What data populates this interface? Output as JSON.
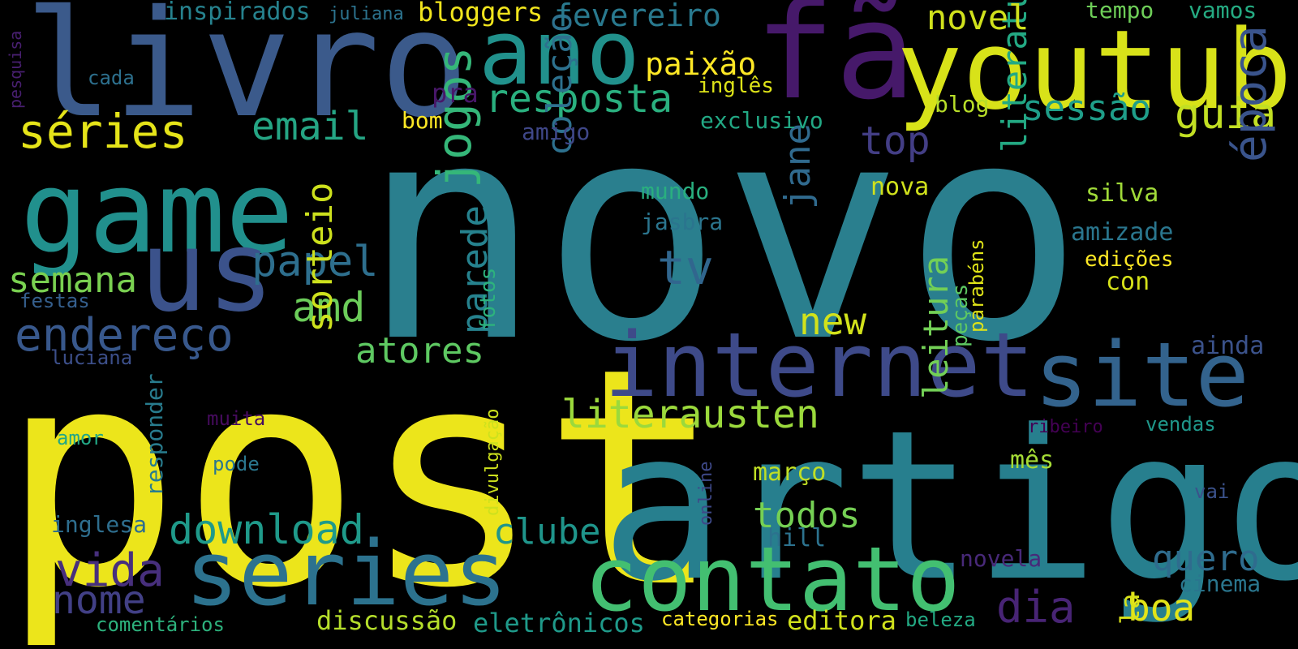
{
  "cloud": {
    "words": [
      {
        "id": "novo",
        "text": "novo",
        "color": "#2a7f8e"
      },
      {
        "id": "post",
        "text": "post",
        "color": "#ece51b"
      },
      {
        "id": "artigo",
        "text": "artigo",
        "color": "#277f8e"
      },
      {
        "id": "livro",
        "text": "livro",
        "color": "#3b5a8b"
      },
      {
        "id": "fa",
        "text": "fã",
        "color": "#46196a"
      },
      {
        "id": "youtube",
        "text": "youtube",
        "color": "#d8e219"
      },
      {
        "id": "game",
        "text": "game",
        "color": "#21908d"
      },
      {
        "id": "us",
        "text": "us",
        "color": "#3b528b"
      },
      {
        "id": "ano",
        "text": "ano",
        "color": "#21918c"
      },
      {
        "id": "internet",
        "text": "internet",
        "color": "#3e4a89"
      },
      {
        "id": "site",
        "text": "site",
        "color": "#33638d"
      },
      {
        "id": "series-2",
        "text": "series",
        "color": "#2c728e"
      },
      {
        "id": "contato",
        "text": "contato",
        "color": "#43bf71"
      },
      {
        "id": "series",
        "text": "séries",
        "color": "#e5e419"
      },
      {
        "id": "email",
        "text": "email",
        "color": "#25a584"
      },
      {
        "id": "endereco",
        "text": "endereço",
        "color": "#38588c"
      },
      {
        "id": "semana",
        "text": "semana",
        "color": "#7ad151"
      },
      {
        "id": "papel",
        "text": "papel",
        "color": "#2e6f8e"
      },
      {
        "id": "amd",
        "text": "amd",
        "color": "#6ccd5a"
      },
      {
        "id": "jogos",
        "text": "jogos",
        "color": "#35b779"
      },
      {
        "id": "resposta",
        "text": "resposta",
        "color": "#2ab07f"
      },
      {
        "id": "paixao",
        "text": "paixão",
        "color": "#fde725"
      },
      {
        "id": "tv",
        "text": "tv",
        "color": "#31668e"
      },
      {
        "id": "top",
        "text": "top",
        "color": "#433e85"
      },
      {
        "id": "colecao",
        "text": "coleção",
        "color": "#2d718e"
      },
      {
        "id": "sessao",
        "text": "sessão",
        "color": "#1f9e89"
      },
      {
        "id": "guia",
        "text": "guia",
        "color": "#c2df23"
      },
      {
        "id": "epoca",
        "text": "época",
        "color": "#3a548c"
      },
      {
        "id": "literatura",
        "text": "literatura",
        "color": "#23a983"
      },
      {
        "id": "jane",
        "text": "jane",
        "color": "#306a8e"
      },
      {
        "id": "new",
        "text": "new",
        "color": "#d2e21b"
      },
      {
        "id": "atores",
        "text": "atores",
        "color": "#5ec962"
      },
      {
        "id": "sorteio",
        "text": "sorteio",
        "color": "#cde11d"
      },
      {
        "id": "literausten",
        "text": "literausten",
        "color": "#9bd93c"
      },
      {
        "id": "parede",
        "text": "parede",
        "color": "#26828e"
      },
      {
        "id": "leitura",
        "text": "leitura",
        "color": "#73d056"
      },
      {
        "id": "download",
        "text": "download",
        "color": "#1f9a8a"
      },
      {
        "id": "vida",
        "text": "vida",
        "color": "#472f7d"
      },
      {
        "id": "nome",
        "text": "nome",
        "color": "#424086"
      },
      {
        "id": "clube",
        "text": "clube",
        "color": "#1f958b"
      },
      {
        "id": "todos",
        "text": "todos",
        "color": "#75d054"
      },
      {
        "id": "dia",
        "text": "dia",
        "color": "#482475"
      },
      {
        "id": "boa",
        "text": "boa",
        "color": "#e2e418"
      },
      {
        "id": "quero",
        "text": "quero",
        "color": "#2f6c8e"
      },
      {
        "id": "fevereiro",
        "text": "fevereiro",
        "color": "#29798e"
      },
      {
        "id": "bloggers",
        "text": "bloggers",
        "color": "#f1e51d"
      },
      {
        "id": "inspirados",
        "text": "inspirados",
        "color": "#26828e"
      },
      {
        "id": "juliana",
        "text": "juliana",
        "color": "#2c738e"
      },
      {
        "id": "novel",
        "text": "novel",
        "color": "#d0e11c"
      },
      {
        "id": "tempo",
        "text": "tempo",
        "color": "#6ece58"
      },
      {
        "id": "vamos",
        "text": "vamos",
        "color": "#25ab82"
      },
      {
        "id": "cada",
        "text": "cada",
        "color": "#2d708e"
      },
      {
        "id": "pesquisa",
        "text": "pesquisa",
        "color": "#481f70"
      },
      {
        "id": "pra",
        "text": "pra",
        "color": "#481769"
      },
      {
        "id": "ingles",
        "text": "inglês",
        "color": "#dde318"
      },
      {
        "id": "blog",
        "text": "blog",
        "color": "#b8de29"
      },
      {
        "id": "bom",
        "text": "bom",
        "color": "#fde725"
      },
      {
        "id": "amigo",
        "text": "amigo",
        "color": "#3f4788"
      },
      {
        "id": "exclusivo",
        "text": "exclusivo",
        "color": "#22a884"
      },
      {
        "id": "mundo",
        "text": "mundo",
        "color": "#29af7f"
      },
      {
        "id": "nova",
        "text": "nova",
        "color": "#d0e11c"
      },
      {
        "id": "silva",
        "text": "silva",
        "color": "#a0da39"
      },
      {
        "id": "jasbra",
        "text": "jasbra",
        "color": "#2b758e"
      },
      {
        "id": "amizade",
        "text": "amizade",
        "color": "#2a768e"
      },
      {
        "id": "edicoes",
        "text": "edições",
        "color": "#fde725"
      },
      {
        "id": "con",
        "text": "con",
        "color": "#d5e21a"
      },
      {
        "id": "fotos",
        "text": "fotos",
        "color": "#2db27d"
      },
      {
        "id": "pecas",
        "text": "peças",
        "color": "#5ec962"
      },
      {
        "id": "parabens",
        "text": "parabéns",
        "color": "#dfe318"
      },
      {
        "id": "festas",
        "text": "festas",
        "color": "#355f8d"
      },
      {
        "id": "luciana",
        "text": "luciana",
        "color": "#3c4f8a"
      },
      {
        "id": "ainda",
        "text": "ainda",
        "color": "#3b528b"
      },
      {
        "id": "responder",
        "text": "responder",
        "color": "#287c8e"
      },
      {
        "id": "muita",
        "text": "muita",
        "color": "#460b5e"
      },
      {
        "id": "amor",
        "text": "amor",
        "color": "#22a785"
      },
      {
        "id": "pode",
        "text": "pode",
        "color": "#2a778e"
      },
      {
        "id": "divulgacao",
        "text": "divulgação",
        "color": "#cde11d"
      },
      {
        "id": "online",
        "text": "online",
        "color": "#3e4989"
      },
      {
        "id": "marco",
        "text": "março",
        "color": "#c0df25"
      },
      {
        "id": "mes",
        "text": "mês",
        "color": "#a5db36"
      },
      {
        "id": "ribeiro",
        "text": "ribeiro",
        "color": "#440154"
      },
      {
        "id": "vendas",
        "text": "vendas",
        "color": "#1f988b"
      },
      {
        "id": "vai",
        "text": "vai",
        "color": "#3b528b"
      },
      {
        "id": "inglesa",
        "text": "inglesa",
        "color": "#2e6e8e"
      },
      {
        "id": "hill",
        "text": "hill",
        "color": "#2c728e"
      },
      {
        "id": "novela",
        "text": "novela",
        "color": "#482979"
      },
      {
        "id": "cinema",
        "text": "cinema",
        "color": "#2a768e"
      },
      {
        "id": "comentarios",
        "text": "comentários",
        "color": "#2db27d"
      },
      {
        "id": "discussao",
        "text": "discussão",
        "color": "#b5de2b"
      },
      {
        "id": "eletronicos",
        "text": "eletrônicos",
        "color": "#1f9a8a"
      },
      {
        "id": "categorias",
        "text": "categorias",
        "color": "#fde725"
      },
      {
        "id": "editora",
        "text": "editora",
        "color": "#d0e11c"
      },
      {
        "id": "beleza",
        "text": "beleza",
        "color": "#23a983"
      },
      {
        "id": "la",
        "text": "la",
        "color": "#d8e219"
      }
    ]
  }
}
